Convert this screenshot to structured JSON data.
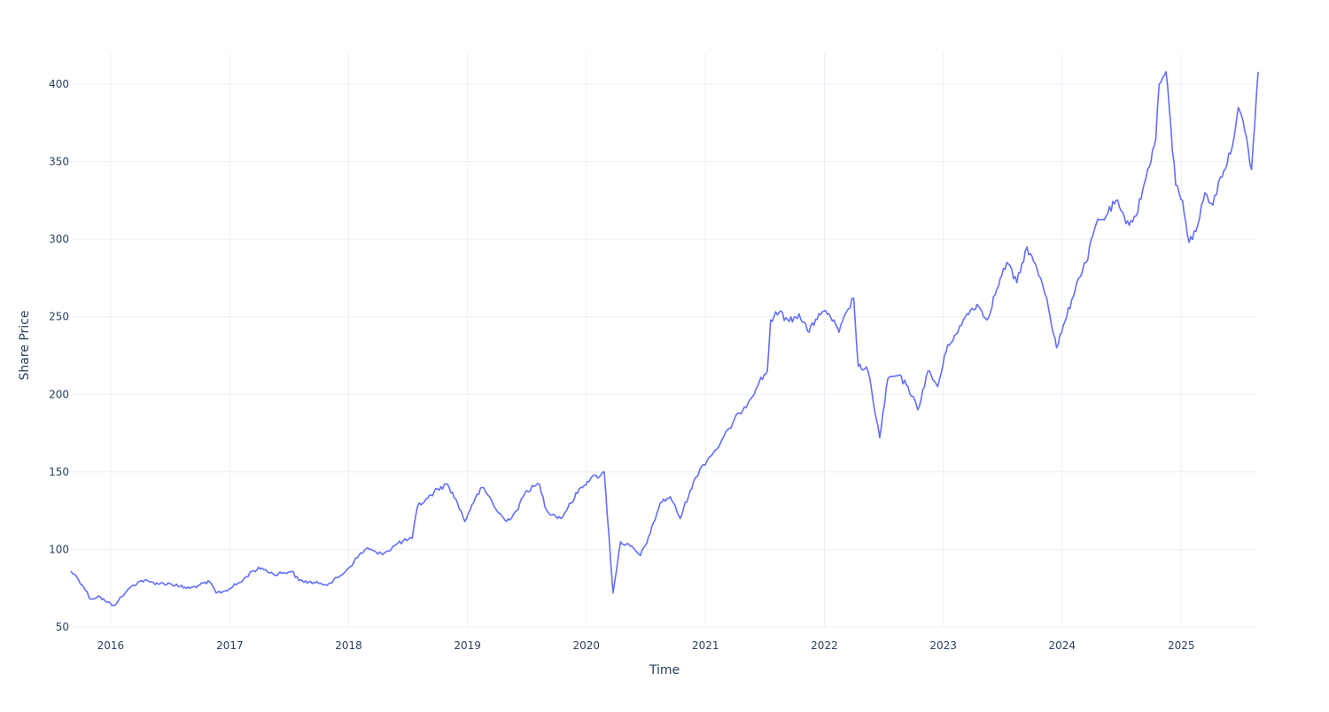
{
  "chart_data": {
    "type": "line",
    "xlabel": "Time",
    "ylabel": "Share Price",
    "x_type": "date",
    "xlim": [
      "2015-09-01",
      "2025-08-25"
    ],
    "ylim": [
      50,
      420
    ],
    "x_ticks": [
      {
        "value": "2016-01-01",
        "label": "2016"
      },
      {
        "value": "2017-01-01",
        "label": "2017"
      },
      {
        "value": "2018-01-01",
        "label": "2018"
      },
      {
        "value": "2019-01-01",
        "label": "2019"
      },
      {
        "value": "2020-01-01",
        "label": "2020"
      },
      {
        "value": "2021-01-01",
        "label": "2021"
      },
      {
        "value": "2022-01-01",
        "label": "2022"
      },
      {
        "value": "2023-01-01",
        "label": "2023"
      },
      {
        "value": "2024-01-01",
        "label": "2024"
      },
      {
        "value": "2025-01-01",
        "label": "2025"
      }
    ],
    "y_ticks": [
      50,
      100,
      150,
      200,
      250,
      300,
      350,
      400
    ],
    "grid": true,
    "legend": "none",
    "colors": {
      "series": "#636efa",
      "grid": "#ebf0f8",
      "text": "#2a3f5f"
    },
    "series": [
      {
        "x": [
          "2015-09-01",
          "2015-09-20",
          "2015-10-10",
          "2015-11-01",
          "2015-11-25",
          "2015-12-20",
          "2016-01-10",
          "2016-01-25",
          "2016-02-15",
          "2016-03-10",
          "2016-04-05",
          "2016-05-01",
          "2016-06-01",
          "2016-07-01",
          "2016-08-01",
          "2016-09-01",
          "2016-10-01",
          "2016-11-01",
          "2016-11-20",
          "2016-12-15",
          "2017-01-10",
          "2017-02-10",
          "2017-03-10",
          "2017-04-10",
          "2017-05-15",
          "2017-06-15",
          "2017-07-10",
          "2017-08-01",
          "2017-09-01",
          "2017-10-01",
          "2017-11-01",
          "2017-12-01",
          "2018-01-01",
          "2018-02-01",
          "2018-03-01",
          "2018-04-01",
          "2018-05-01",
          "2018-06-01",
          "2018-07-15",
          "2018-08-01",
          "2018-09-01",
          "2018-10-01",
          "2018-11-01",
          "2018-12-01",
          "2018-12-24",
          "2019-01-15",
          "2019-02-15",
          "2019-03-15",
          "2019-04-01",
          "2019-05-01",
          "2019-06-01",
          "2019-07-01",
          "2019-08-10",
          "2019-09-01",
          "2019-10-15",
          "2019-11-15",
          "2019-12-15",
          "2020-01-15",
          "2020-02-15",
          "2020-02-25",
          "2020-03-10",
          "2020-03-23",
          "2020-04-15",
          "2020-05-15",
          "2020-06-15",
          "2020-07-15",
          "2020-08-15",
          "2020-09-15",
          "2020-10-15",
          "2020-11-15",
          "2020-12-15",
          "2021-01-15",
          "2021-02-15",
          "2021-03-15",
          "2021-04-15",
          "2021-05-15",
          "2021-06-15",
          "2021-07-10",
          "2021-07-20",
          "2021-08-15",
          "2021-09-15",
          "2021-10-15",
          "2021-11-15",
          "2021-12-15",
          "2022-01-15",
          "2022-02-15",
          "2022-03-15",
          "2022-04-01",
          "2022-04-15",
          "2022-05-15",
          "2022-06-20",
          "2022-07-15",
          "2022-08-15",
          "2022-09-15",
          "2022-10-15",
          "2022-11-15",
          "2022-12-15",
          "2023-01-15",
          "2023-02-15",
          "2023-03-15",
          "2023-04-15",
          "2023-05-15",
          "2023-06-15",
          "2023-07-15",
          "2023-08-15",
          "2023-09-15",
          "2023-10-27",
          "2023-11-15",
          "2023-12-15",
          "2024-01-15",
          "2024-02-15",
          "2024-03-15",
          "2024-04-15",
          "2024-05-15",
          "2024-06-15",
          "2024-07-15",
          "2024-08-15",
          "2024-09-15",
          "2024-10-15",
          "2024-10-25",
          "2024-11-15",
          "2024-12-15",
          "2025-01-05",
          "2025-01-25",
          "2025-02-15",
          "2025-03-15",
          "2025-04-08",
          "2025-05-01",
          "2025-06-01",
          "2025-06-25",
          "2025-07-15",
          "2025-08-05",
          "2025-08-25"
        ],
        "y": [
          86,
          82,
          76,
          68,
          70,
          66,
          64,
          67,
          72,
          77,
          80,
          79,
          78,
          78,
          76,
          75,
          77,
          79,
          72,
          73,
          76,
          80,
          86,
          88,
          84,
          85,
          86,
          80,
          79,
          78,
          78,
          82,
          88,
          96,
          101,
          97,
          99,
          104,
          107,
          128,
          133,
          139,
          142,
          130,
          118,
          129,
          140,
          132,
          125,
          118,
          125,
          138,
          142,
          125,
          120,
          130,
          140,
          146,
          148,
          150,
          110,
          72,
          105,
          102,
          96,
          110,
          130,
          134,
          120,
          138,
          152,
          160,
          168,
          178,
          188,
          196,
          208,
          215,
          248,
          253,
          247,
          252,
          240,
          252,
          252,
          240,
          255,
          262,
          218,
          215,
          172,
          210,
          212,
          205,
          190,
          215,
          205,
          232,
          240,
          252,
          258,
          248,
          268,
          285,
          272,
          295,
          275,
          262,
          230,
          250,
          272,
          285,
          310,
          315,
          325,
          310,
          315,
          340,
          365,
          400,
          408,
          335,
          325,
          298,
          305,
          330,
          322,
          340,
          355,
          385,
          370,
          345,
          408
        ]
      }
    ]
  }
}
